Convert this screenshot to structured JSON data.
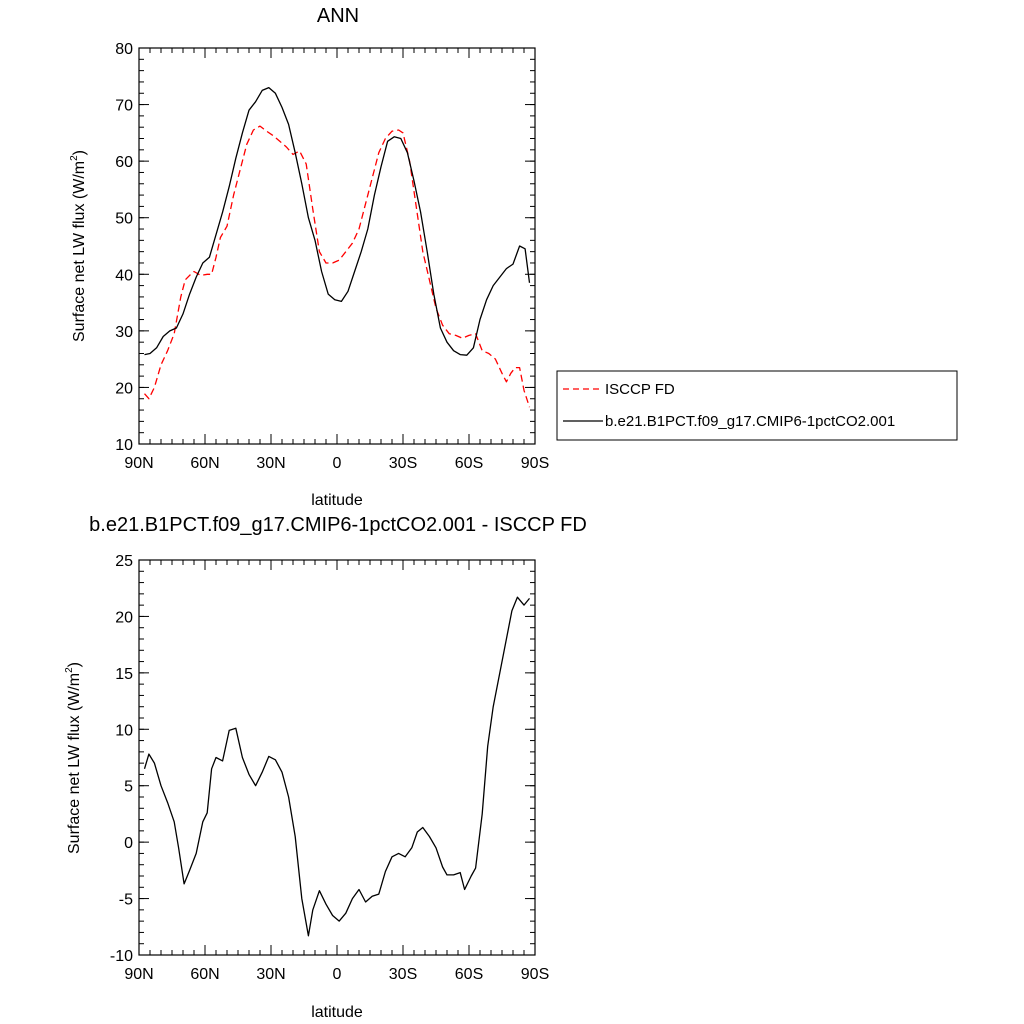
{
  "chart_data": [
    {
      "type": "line",
      "title": "ANN",
      "xlabel": "latitude",
      "ylabel": "Surface net LW flux (W/m",
      "ylabel_sup": "2",
      "ylabel_end": ")",
      "xlim": [
        -90,
        90
      ],
      "ylim": [
        10,
        80
      ],
      "yticks": [
        10,
        20,
        30,
        40,
        50,
        60,
        70,
        80
      ],
      "xticks": [
        {
          "value": -90,
          "label": "90N"
        },
        {
          "value": -60,
          "label": "60N"
        },
        {
          "value": -30,
          "label": "30N"
        },
        {
          "value": 0,
          "label": "0"
        },
        {
          "value": 30,
          "label": "30S"
        },
        {
          "value": 60,
          "label": "60S"
        },
        {
          "value": 90,
          "label": "90S"
        }
      ],
      "legend_placement": "outside-right",
      "grid": false,
      "series": [
        {
          "name": "ISCCP FD",
          "color": "#ff0000",
          "dash": true,
          "points": [
            [
              -87.5,
              18.9
            ],
            [
              -85.5,
              18.0
            ],
            [
              -83,
              20.0
            ],
            [
              -80,
              24.0
            ],
            [
              -77,
              26.5
            ],
            [
              -74,
              29.5
            ],
            [
              -71,
              36.0
            ],
            [
              -69,
              39.0
            ],
            [
              -67,
              39.8
            ],
            [
              -65,
              40.5
            ],
            [
              -62,
              39.8
            ],
            [
              -59,
              40.0
            ],
            [
              -57,
              40.0
            ],
            [
              -55,
              43.0
            ],
            [
              -53,
              46.5
            ],
            [
              -50,
              48.5
            ],
            [
              -47,
              54.0
            ],
            [
              -44,
              58.5
            ],
            [
              -41,
              63.0
            ],
            [
              -38,
              65.5
            ],
            [
              -35,
              66.2
            ],
            [
              -32,
              65.3
            ],
            [
              -29,
              64.5
            ],
            [
              -26,
              63.5
            ],
            [
              -23,
              62.5
            ],
            [
              -20,
              61.2
            ],
            [
              -17,
              61.8
            ],
            [
              -14,
              59.5
            ],
            [
              -11,
              51.5
            ],
            [
              -8,
              44.0
            ],
            [
              -5,
              42.0
            ],
            [
              -2,
              42.0
            ],
            [
              1,
              42.5
            ],
            [
              4,
              44.0
            ],
            [
              7,
              45.5
            ],
            [
              10,
              48.0
            ],
            [
              13,
              52.5
            ],
            [
              16,
              57.0
            ],
            [
              19,
              61.5
            ],
            [
              22,
              64.0
            ],
            [
              25,
              65.3
            ],
            [
              28,
              65.5
            ],
            [
              30,
              65.0
            ],
            [
              33,
              60.0
            ],
            [
              36,
              52.0
            ],
            [
              39,
              44.0
            ],
            [
              42,
              39.0
            ],
            [
              45,
              34.0
            ],
            [
              48,
              31.0
            ],
            [
              51,
              29.5
            ],
            [
              54,
              29.2
            ],
            [
              57,
              28.7
            ],
            [
              60,
              29.2
            ],
            [
              63,
              29.5
            ],
            [
              66,
              26.5
            ],
            [
              69,
              26.0
            ],
            [
              72,
              25.0
            ],
            [
              75,
              22.5
            ],
            [
              77,
              21.0
            ],
            [
              79,
              22.5
            ],
            [
              81,
              23.5
            ],
            [
              83,
              23.5
            ],
            [
              85,
              19.5
            ],
            [
              87.5,
              16.5
            ]
          ]
        },
        {
          "name": "b.e21.B1PCT.f09_g17.CMIP6-1pctCO2.001",
          "color": "#000000",
          "dash": false,
          "points": [
            [
              -87.5,
              25.8
            ],
            [
              -85,
              26.0
            ],
            [
              -82,
              27.0
            ],
            [
              -79,
              29.0
            ],
            [
              -76,
              30.0
            ],
            [
              -73,
              30.5
            ],
            [
              -70,
              33.0
            ],
            [
              -67,
              36.5
            ],
            [
              -64,
              39.5
            ],
            [
              -61,
              42.0
            ],
            [
              -58,
              43.0
            ],
            [
              -55,
              47.0
            ],
            [
              -52,
              51.0
            ],
            [
              -49,
              55.5
            ],
            [
              -46,
              60.5
            ],
            [
              -43,
              65.0
            ],
            [
              -40,
              69.0
            ],
            [
              -37,
              70.5
            ],
            [
              -34,
              72.5
            ],
            [
              -31,
              73.0
            ],
            [
              -28,
              72.0
            ],
            [
              -25,
              69.5
            ],
            [
              -22,
              66.5
            ],
            [
              -19,
              61.5
            ],
            [
              -16,
              56.0
            ],
            [
              -13,
              50.0
            ],
            [
              -10,
              46.0
            ],
            [
              -7,
              40.5
            ],
            [
              -4,
              36.5
            ],
            [
              -1,
              35.5
            ],
            [
              2,
              35.2
            ],
            [
              5,
              37.0
            ],
            [
              8,
              40.5
            ],
            [
              11,
              44.0
            ],
            [
              14,
              48.0
            ],
            [
              17,
              54.0
            ],
            [
              20,
              59.0
            ],
            [
              23,
              63.5
            ],
            [
              26,
              64.3
            ],
            [
              29,
              64.0
            ],
            [
              32,
              61.5
            ],
            [
              35,
              56.5
            ],
            [
              38,
              51.0
            ],
            [
              41,
              44.0
            ],
            [
              44,
              36.5
            ],
            [
              47,
              30.5
            ],
            [
              50,
              28.0
            ],
            [
              53,
              26.5
            ],
            [
              56,
              25.8
            ],
            [
              59,
              25.7
            ],
            [
              62,
              27.0
            ],
            [
              65,
              32.0
            ],
            [
              68,
              35.5
            ],
            [
              71,
              38.0
            ],
            [
              74,
              39.5
            ],
            [
              77,
              41.0
            ],
            [
              80,
              41.8
            ],
            [
              83,
              45.0
            ],
            [
              85.5,
              44.5
            ],
            [
              87.5,
              38.5
            ]
          ]
        }
      ]
    },
    {
      "type": "line",
      "title": "b.e21.B1PCT.f09_g17.CMIP6-1pctCO2.001 - ISCCP FD",
      "xlabel": "latitude",
      "ylabel": "Surface net LW flux (W/m",
      "ylabel_sup": "2",
      "ylabel_end": ")",
      "xlim": [
        -90,
        90
      ],
      "ylim": [
        -10,
        25
      ],
      "yticks": [
        -10,
        -5,
        0,
        5,
        10,
        15,
        20,
        25
      ],
      "xticks": [
        {
          "value": -90,
          "label": "90N"
        },
        {
          "value": -60,
          "label": "60N"
        },
        {
          "value": -30,
          "label": "30N"
        },
        {
          "value": 0,
          "label": "0"
        },
        {
          "value": 30,
          "label": "30S"
        },
        {
          "value": 60,
          "label": "60S"
        },
        {
          "value": 90,
          "label": "90S"
        }
      ],
      "grid": false,
      "series": [
        {
          "color": "#000000",
          "dash": false,
          "points": [
            [
              -87.5,
              6.5
            ],
            [
              -85.5,
              7.8
            ],
            [
              -83,
              7.0
            ],
            [
              -80,
              5.0
            ],
            [
              -77,
              3.5
            ],
            [
              -74,
              1.8
            ],
            [
              -72,
              -0.5
            ],
            [
              -69.5,
              -3.7
            ],
            [
              -67,
              -2.5
            ],
            [
              -64,
              -1.0
            ],
            [
              -61,
              1.8
            ],
            [
              -59,
              2.6
            ],
            [
              -57,
              6.5
            ],
            [
              -55,
              7.5
            ],
            [
              -52,
              7.2
            ],
            [
              -49,
              9.9
            ],
            [
              -46,
              10.1
            ],
            [
              -43,
              7.5
            ],
            [
              -40,
              6.0
            ],
            [
              -37,
              5.0
            ],
            [
              -34,
              6.2
            ],
            [
              -31,
              7.6
            ],
            [
              -28,
              7.3
            ],
            [
              -25,
              6.2
            ],
            [
              -22,
              4.0
            ],
            [
              -19,
              0.5
            ],
            [
              -16,
              -5.0
            ],
            [
              -13,
              -8.3
            ],
            [
              -11,
              -6.0
            ],
            [
              -8,
              -4.3
            ],
            [
              -5,
              -5.5
            ],
            [
              -2,
              -6.5
            ],
            [
              1,
              -7.0
            ],
            [
              4,
              -6.3
            ],
            [
              7,
              -5.0
            ],
            [
              10,
              -4.2
            ],
            [
              13,
              -5.3
            ],
            [
              16,
              -4.8
            ],
            [
              19,
              -4.6
            ],
            [
              22,
              -2.6
            ],
            [
              25,
              -1.3
            ],
            [
              28,
              -1.0
            ],
            [
              31,
              -1.3
            ],
            [
              34,
              -0.5
            ],
            [
              36.5,
              0.9
            ],
            [
              39,
              1.3
            ],
            [
              42,
              0.5
            ],
            [
              45,
              -0.5
            ],
            [
              48,
              -2.2
            ],
            [
              50,
              -2.9
            ],
            [
              53,
              -2.9
            ],
            [
              56,
              -2.7
            ],
            [
              58,
              -4.2
            ],
            [
              61,
              -3.0
            ],
            [
              63,
              -2.3
            ],
            [
              66,
              2.5
            ],
            [
              68.5,
              8.5
            ],
            [
              71,
              12.0
            ],
            [
              74,
              15.0
            ],
            [
              77,
              18.0
            ],
            [
              79.5,
              20.5
            ],
            [
              82,
              21.7
            ],
            [
              85,
              21.0
            ],
            [
              87.5,
              21.6
            ]
          ]
        }
      ]
    }
  ]
}
